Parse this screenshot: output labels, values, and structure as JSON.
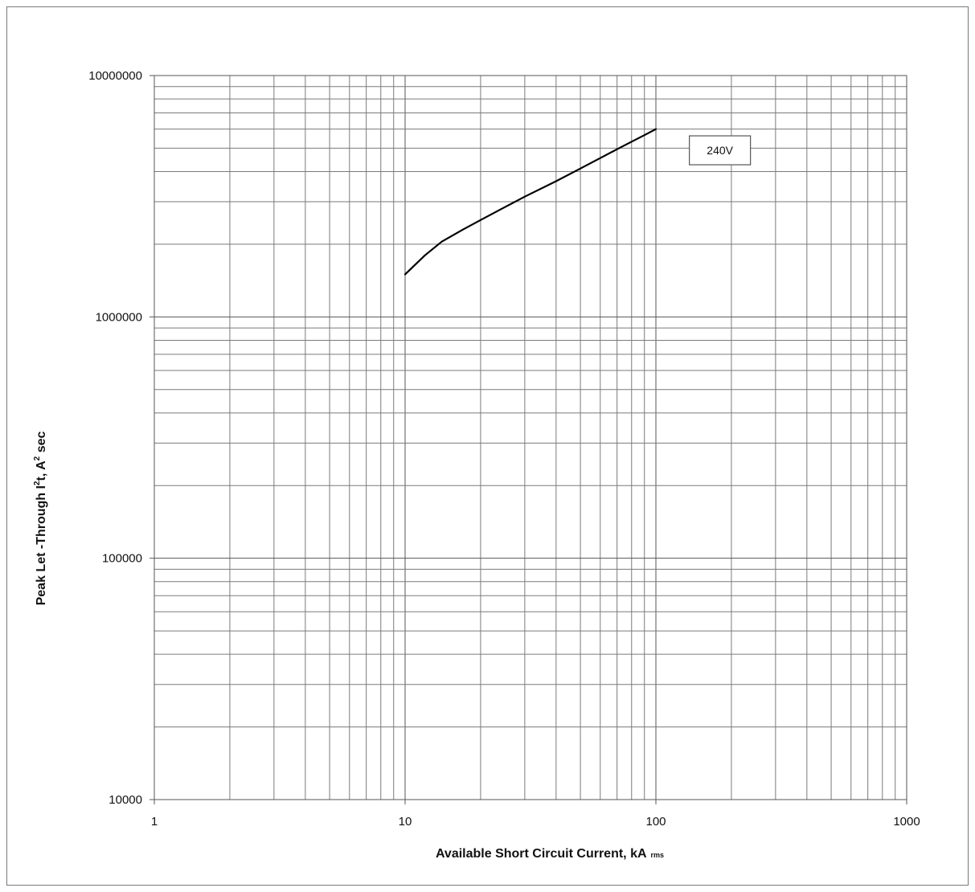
{
  "chart_data": {
    "type": "line",
    "xscale": "log",
    "yscale": "log",
    "xlim": [
      1,
      1000
    ],
    "ylim": [
      10000,
      10000000
    ],
    "xticks": [
      "1",
      "10",
      "100",
      "1000"
    ],
    "yticks": [
      "10000",
      "100000",
      "1000000",
      "10000000"
    ],
    "xlabel": {
      "main": "Available Short Circuit Current, kA",
      "subscript": "rms"
    },
    "ylabel": {
      "pre": "Peak Let -Through I",
      "sup1": "2",
      "mid": "t, A",
      "sup2": "2",
      "post": " sec"
    },
    "grid": true,
    "series": [
      {
        "x": [
          10,
          12,
          14,
          17,
          20,
          25,
          30,
          40,
          50,
          60,
          70,
          80,
          90,
          100
        ],
        "y": [
          1500000,
          1800000,
          2050000,
          2300000,
          2520000,
          2850000,
          3150000,
          3650000,
          4120000,
          4550000,
          4950000,
          5320000,
          5660000,
          6000000
        ],
        "color": "#000000"
      }
    ],
    "annotations": [
      {
        "text": "240V",
        "x": 180,
        "y": 4900000
      }
    ]
  }
}
